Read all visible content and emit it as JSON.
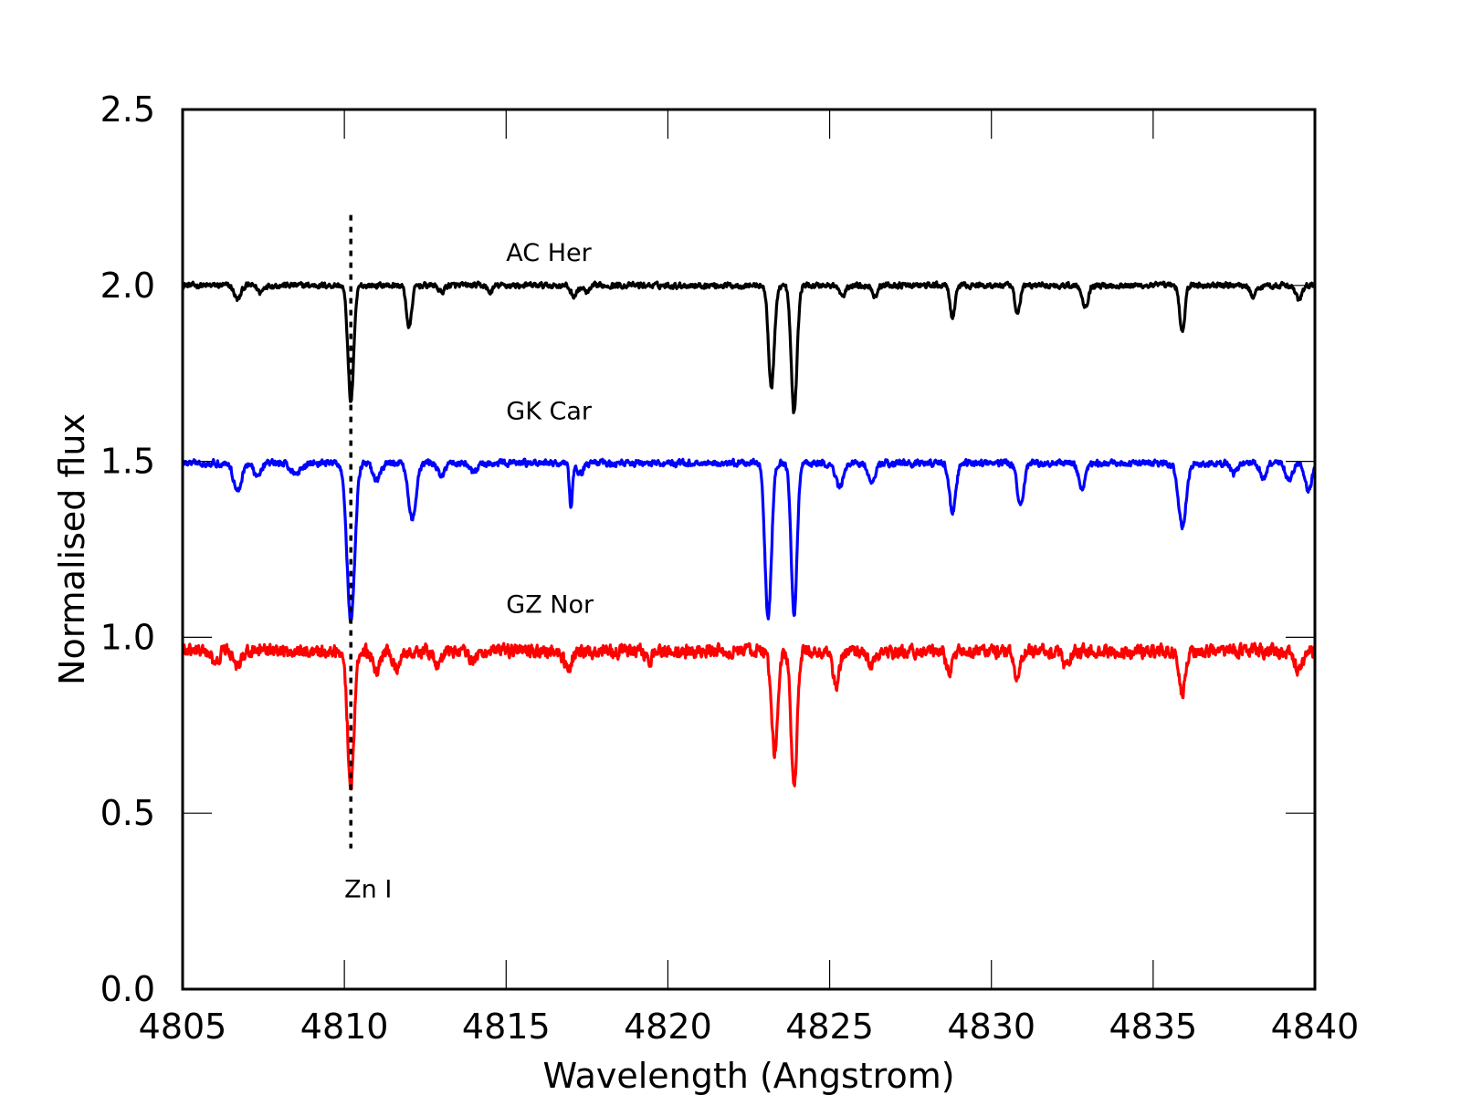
{
  "chart_data": {
    "type": "line",
    "xlabel": "Wavelength (Angstrom)",
    "ylabel": "Normalised flux",
    "xlim": [
      4805,
      4840
    ],
    "ylim": [
      0.0,
      2.5
    ],
    "xticks": [
      "4805",
      "4810",
      "4815",
      "4820",
      "4825",
      "4830",
      "4835",
      "4840"
    ],
    "yticks": [
      "0.0",
      "0.5",
      "1.0",
      "1.5",
      "2.0",
      "2.5"
    ],
    "grid": false,
    "series": [
      {
        "name": "AC Her",
        "color": "#000000",
        "baseline": 2.0,
        "noise": 0.012,
        "lines": [
          [
            4806.7,
            0.04,
            0.1
          ],
          [
            4807.4,
            0.02,
            0.08
          ],
          [
            4810.2,
            0.33,
            0.09
          ],
          [
            4812.0,
            0.12,
            0.08
          ],
          [
            4813.0,
            0.02,
            0.08
          ],
          [
            4814.5,
            0.02,
            0.08
          ],
          [
            4817.1,
            0.03,
            0.1
          ],
          [
            4817.5,
            0.02,
            0.1
          ],
          [
            4823.2,
            0.29,
            0.09
          ],
          [
            4823.9,
            0.36,
            0.09
          ],
          [
            4825.4,
            0.03,
            0.1
          ],
          [
            4826.4,
            0.03,
            0.08
          ],
          [
            4828.8,
            0.1,
            0.07
          ],
          [
            4830.8,
            0.08,
            0.08
          ],
          [
            4832.9,
            0.06,
            0.09
          ],
          [
            4835.9,
            0.13,
            0.08
          ],
          [
            4838.1,
            0.03,
            0.1
          ],
          [
            4839.5,
            0.04,
            0.1
          ]
        ]
      },
      {
        "name": "GK Car",
        "color": "#0000ff",
        "baseline": 1.495,
        "noise": 0.014,
        "lines": [
          [
            4806.7,
            0.08,
            0.12
          ],
          [
            4807.3,
            0.04,
            0.1
          ],
          [
            4808.5,
            0.03,
            0.15
          ],
          [
            4810.2,
            0.45,
            0.12
          ],
          [
            4811.0,
            0.05,
            0.12
          ],
          [
            4812.1,
            0.16,
            0.12
          ],
          [
            4813.0,
            0.04,
            0.1
          ],
          [
            4814.0,
            0.03,
            0.1
          ],
          [
            4817.0,
            0.12,
            0.05
          ],
          [
            4817.3,
            0.03,
            0.1
          ],
          [
            4823.1,
            0.44,
            0.1
          ],
          [
            4823.9,
            0.43,
            0.09
          ],
          [
            4825.3,
            0.07,
            0.12
          ],
          [
            4826.3,
            0.06,
            0.1
          ],
          [
            4828.8,
            0.14,
            0.1
          ],
          [
            4830.9,
            0.12,
            0.1
          ],
          [
            4832.8,
            0.07,
            0.1
          ],
          [
            4835.9,
            0.18,
            0.12
          ],
          [
            4837.5,
            0.03,
            0.1
          ],
          [
            4838.4,
            0.04,
            0.1
          ],
          [
            4839.2,
            0.05,
            0.1
          ],
          [
            4839.8,
            0.08,
            0.1
          ]
        ]
      },
      {
        "name": "GZ Nor",
        "color": "#ff0000",
        "baseline": 0.96,
        "noise": 0.028,
        "lines": [
          [
            4806.0,
            0.04,
            0.1
          ],
          [
            4806.7,
            0.05,
            0.1
          ],
          [
            4810.2,
            0.38,
            0.1
          ],
          [
            4811.0,
            0.06,
            0.1
          ],
          [
            4811.6,
            0.05,
            0.1
          ],
          [
            4812.9,
            0.04,
            0.1
          ],
          [
            4814.0,
            0.03,
            0.1
          ],
          [
            4816.9,
            0.06,
            0.1
          ],
          [
            4819.4,
            0.03,
            0.1
          ],
          [
            4823.3,
            0.29,
            0.1
          ],
          [
            4823.9,
            0.39,
            0.09
          ],
          [
            4825.2,
            0.1,
            0.1
          ],
          [
            4826.3,
            0.04,
            0.1
          ],
          [
            4828.7,
            0.06,
            0.1
          ],
          [
            4830.8,
            0.07,
            0.1
          ],
          [
            4832.3,
            0.04,
            0.1
          ],
          [
            4835.9,
            0.12,
            0.1
          ],
          [
            4839.5,
            0.06,
            0.1
          ]
        ]
      }
    ],
    "annotations": [
      {
        "text": "AC Her",
        "x": 4815.0,
        "y": 2.07
      },
      {
        "text": "GK Car",
        "x": 4815.0,
        "y": 1.62
      },
      {
        "text": "GZ Nor",
        "x": 4815.0,
        "y": 1.07
      },
      {
        "text": "Zn I",
        "x": 4810.0,
        "y": 0.26
      }
    ],
    "vline": {
      "x": 4810.2,
      "y_from": 0.4,
      "y_to": 2.2,
      "style": "dotted",
      "label": "Zn I"
    }
  }
}
